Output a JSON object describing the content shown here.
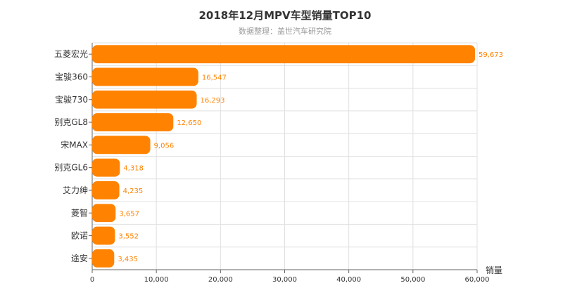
{
  "chart_data": {
    "type": "bar",
    "orientation": "horizontal",
    "title": "2018年12月MPV车型销量TOP10",
    "subtitle": "数据整理：盖世汽车研究院",
    "xlabel": "销量",
    "ylabel": "",
    "xlim": [
      0,
      60000
    ],
    "x_ticks": [
      "0",
      "10,000",
      "20,000",
      "30,000",
      "40,000",
      "50,000",
      "60,000"
    ],
    "grid": true,
    "categories": [
      "五菱宏光",
      "宝骏360",
      "宝骏730",
      "别克GL8",
      "宋MAX",
      "别克GL6",
      "艾力绅",
      "菱智",
      "欧诺",
      "途安"
    ],
    "values": [
      59673,
      16547,
      16293,
      12650,
      9056,
      4318,
      4235,
      3657,
      3552,
      3435
    ],
    "value_labels": [
      "59,673",
      "16,547",
      "16,293",
      "12,650",
      "9,056",
      "4,318",
      "4,235",
      "3,657",
      "3,552",
      "3,435"
    ],
    "bar_color": "#ff8300",
    "label_color": "#ff8300"
  }
}
